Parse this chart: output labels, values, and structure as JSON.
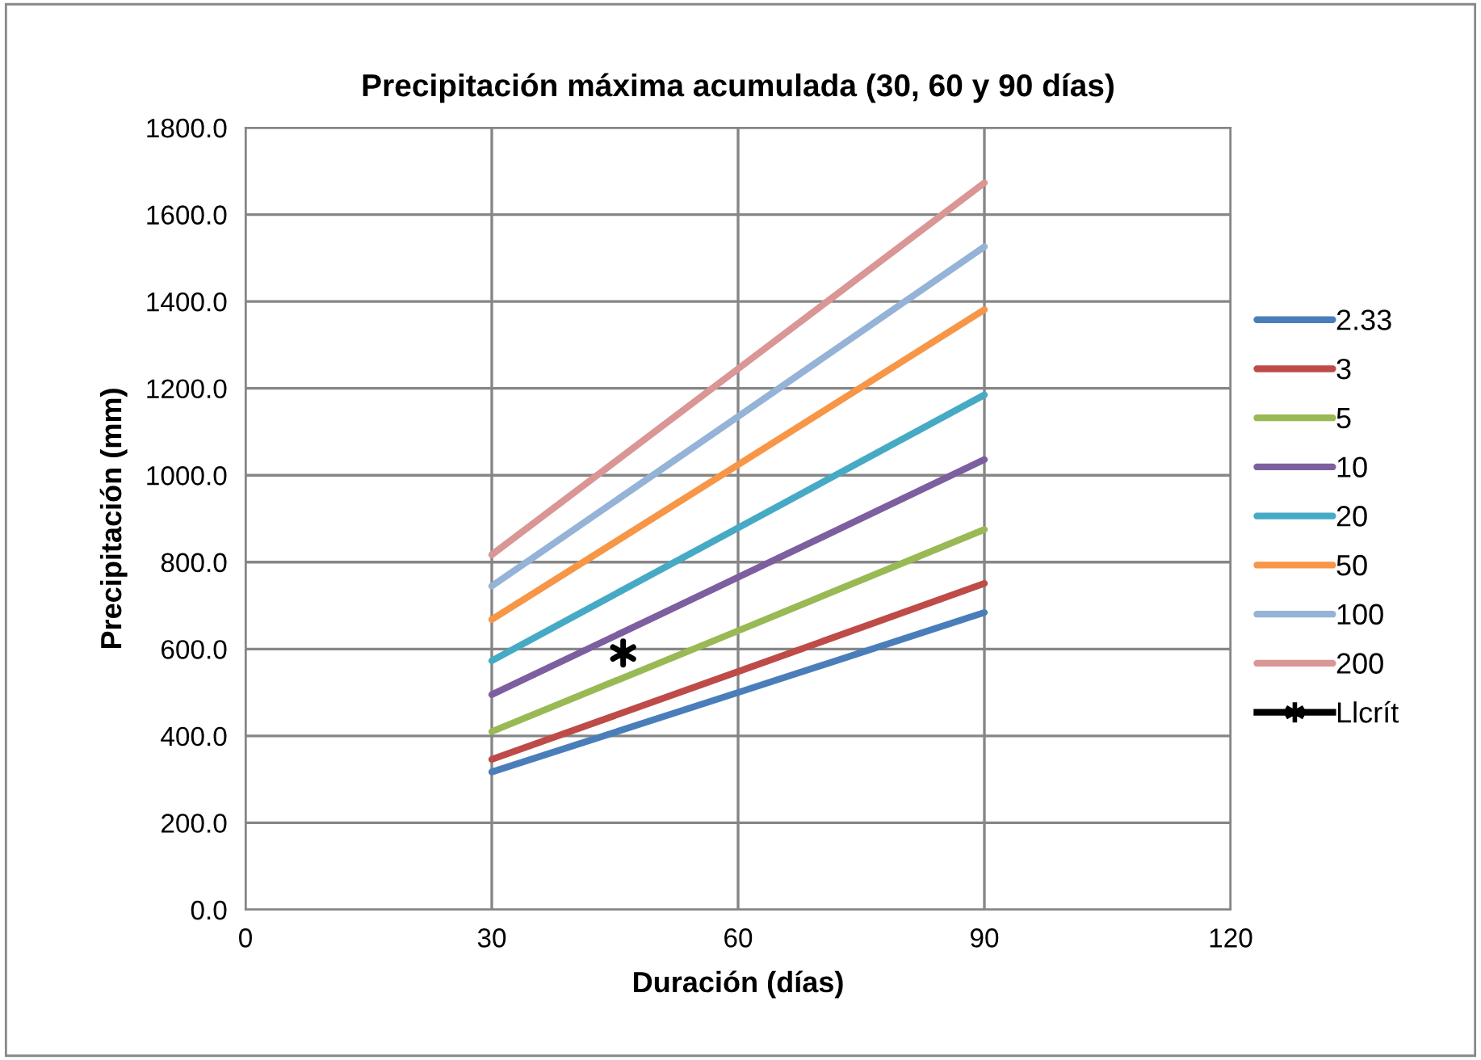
{
  "chart_data": {
    "type": "line",
    "title": "Precipitación máxima acumulada (30, 60 y 90 días)",
    "xlabel": "Duración (días)",
    "ylabel": "Precipitación (mm)",
    "x": [
      30,
      60,
      90
    ],
    "series": [
      {
        "name": "2.33",
        "color": "#4a7ebb",
        "values": [
          317,
          500,
          684
        ]
      },
      {
        "name": "3",
        "color": "#be4b48",
        "values": [
          346,
          548,
          751
        ]
      },
      {
        "name": "5",
        "color": "#98b954",
        "values": [
          410,
          642,
          875
        ]
      },
      {
        "name": "10",
        "color": "#7d5fa0",
        "values": [
          495,
          765,
          1036
        ]
      },
      {
        "name": "20",
        "color": "#46aac5",
        "values": [
          573,
          879,
          1185
        ]
      },
      {
        "name": "50",
        "color": "#f79646",
        "values": [
          668,
          1024,
          1381
        ]
      },
      {
        "name": "100",
        "color": "#95b3d7",
        "values": [
          745,
          1135,
          1526
        ]
      },
      {
        "name": "200",
        "color": "#d99694",
        "values": [
          817,
          1245,
          1673
        ]
      },
      {
        "name": "Llcrít",
        "color": "#000000",
        "type": "scatter",
        "marker": "cross",
        "x": [
          46
        ],
        "values": [
          591
        ]
      }
    ],
    "xlim": [
      0,
      120
    ],
    "xticks": [
      0,
      30,
      60,
      90,
      120
    ],
    "ylim": [
      0,
      1800
    ],
    "yticks": [
      {
        "value": 0,
        "label": "0.0"
      },
      {
        "value": 200,
        "label": "200.0"
      },
      {
        "value": 400,
        "label": "400.0"
      },
      {
        "value": 600,
        "label": "600.0"
      },
      {
        "value": 800,
        "label": "800.0"
      },
      {
        "value": 1000,
        "label": "1000.0"
      },
      {
        "value": 1200,
        "label": "1200.0"
      },
      {
        "value": 1400,
        "label": "1400.0"
      },
      {
        "value": 1600,
        "label": "1600.0"
      },
      {
        "value": 1800,
        "label": "1800.0"
      }
    ],
    "grid": true,
    "legend": "right",
    "marker": "none",
    "line_style": "solid"
  }
}
